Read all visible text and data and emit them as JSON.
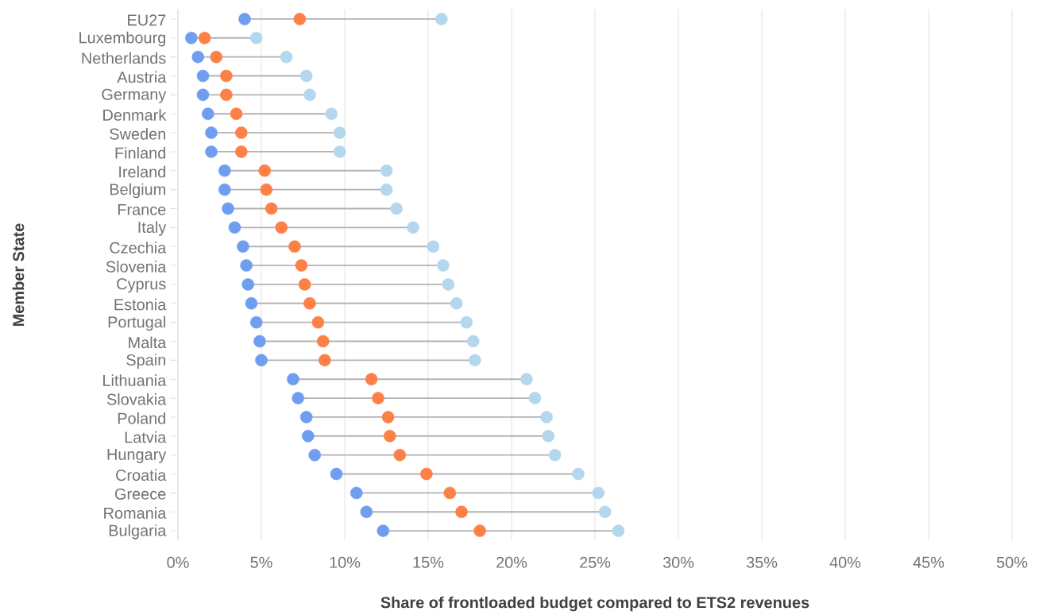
{
  "chart_data": {
    "type": "scatter",
    "orientation": "horizontal",
    "xlabel": "Share of frontloaded budget compared to ETS2 revenues",
    "ylabel": "Member State",
    "categories": [
      "EU27",
      "Luxembourg",
      "Netherlands",
      "Austria",
      "Germany",
      "Denmark",
      "Sweden",
      "Finland",
      "Ireland",
      "Belgium",
      "France",
      "Italy",
      "Czechia",
      "Slovenia",
      "Cyprus",
      "Estonia",
      "Portugal",
      "Malta",
      "Spain",
      "Lithuania",
      "Slovakia",
      "Poland",
      "Latvia",
      "Hungary",
      "Croatia",
      "Greece",
      "Romania",
      "Bulgaria"
    ],
    "series": [
      {
        "color": "#6f9ef0",
        "values": [
          4.0,
          0.8,
          1.2,
          1.5,
          1.5,
          1.8,
          2.0,
          2.0,
          2.8,
          2.8,
          3.0,
          3.4,
          3.9,
          4.1,
          4.2,
          4.4,
          4.7,
          4.9,
          5.0,
          6.9,
          7.2,
          7.7,
          7.8,
          8.2,
          9.5,
          10.7,
          11.3,
          12.3
        ]
      },
      {
        "color": "#fd8047",
        "values": [
          7.3,
          1.6,
          2.3,
          2.9,
          2.9,
          3.5,
          3.8,
          3.8,
          5.2,
          5.3,
          5.6,
          6.2,
          7.0,
          7.4,
          7.6,
          7.9,
          8.4,
          8.7,
          8.8,
          11.6,
          12.0,
          12.6,
          12.7,
          13.3,
          14.9,
          16.3,
          17.0,
          18.1
        ]
      },
      {
        "color": "#b4d7ee",
        "values": [
          15.8,
          4.7,
          6.5,
          7.7,
          7.9,
          9.2,
          9.7,
          9.7,
          12.5,
          12.5,
          13.1,
          14.1,
          15.3,
          15.9,
          16.2,
          16.7,
          17.3,
          17.7,
          17.8,
          20.9,
          21.4,
          22.1,
          22.2,
          22.6,
          24.0,
          25.2,
          25.6,
          26.4
        ]
      }
    ],
    "xlim": [
      0,
      50
    ],
    "xticks": [
      {
        "value": 0,
        "label": "0%"
      },
      {
        "value": 5,
        "label": "5%"
      },
      {
        "value": 10,
        "label": "10%"
      },
      {
        "value": 15,
        "label": "15%"
      },
      {
        "value": 20,
        "label": "20%"
      },
      {
        "value": 25,
        "label": "25%"
      },
      {
        "value": 30,
        "label": "30%"
      },
      {
        "value": 35,
        "label": "35%"
      },
      {
        "value": 40,
        "label": "40%"
      },
      {
        "value": 45,
        "label": "45%"
      },
      {
        "value": 50,
        "label": "50%"
      }
    ],
    "grid": "x"
  }
}
